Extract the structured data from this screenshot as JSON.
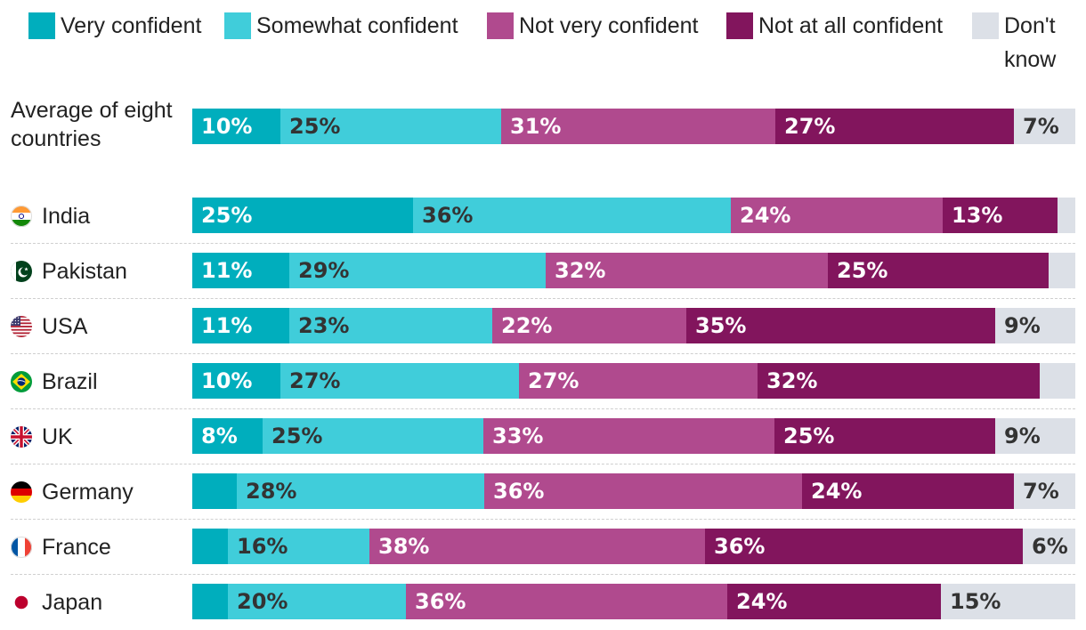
{
  "chart_data": {
    "type": "bar",
    "orientation": "horizontal-stacked-100",
    "legend": [
      {
        "name": "Very confident",
        "color": "#00AEBD"
      },
      {
        "name": "Somewhat confident",
        "color": "#40CDDA"
      },
      {
        "name": "Not very confident",
        "color": "#B04A8E"
      },
      {
        "name": "Not at all confident",
        "color": "#82155D"
      },
      {
        "name": "Don't know",
        "color": "#DCE0E7"
      }
    ],
    "average": {
      "label": "Average of eight countries",
      "values": [
        10,
        25,
        31,
        27,
        7
      ],
      "labels": [
        "10%",
        "25%",
        "31%",
        "27%",
        "7%"
      ]
    },
    "countries": [
      {
        "name": "India",
        "flag": "india-flag-icon",
        "values": [
          25,
          36,
          24,
          13,
          2
        ],
        "labels": [
          "25%",
          "36%",
          "24%",
          "13%",
          ""
        ]
      },
      {
        "name": "Pakistan",
        "flag": "pakistan-flag-icon",
        "values": [
          11,
          29,
          32,
          25,
          3
        ],
        "labels": [
          "11%",
          "29%",
          "32%",
          "25%",
          ""
        ]
      },
      {
        "name": "USA",
        "flag": "usa-flag-icon",
        "values": [
          11,
          23,
          22,
          35,
          9
        ],
        "labels": [
          "11%",
          "23%",
          "22%",
          "35%",
          "9%"
        ]
      },
      {
        "name": "Brazil",
        "flag": "brazil-flag-icon",
        "values": [
          10,
          27,
          27,
          32,
          4
        ],
        "labels": [
          "10%",
          "27%",
          "27%",
          "32%",
          ""
        ]
      },
      {
        "name": "UK",
        "flag": "uk-flag-icon",
        "values": [
          8,
          25,
          33,
          25,
          9
        ],
        "labels": [
          "8%",
          "25%",
          "33%",
          "25%",
          "9%"
        ]
      },
      {
        "name": "Germany",
        "flag": "germany-flag-icon",
        "values": [
          5,
          28,
          36,
          24,
          7
        ],
        "labels": [
          "",
          "28%",
          "36%",
          "24%",
          "7%"
        ]
      },
      {
        "name": "France",
        "flag": "france-flag-icon",
        "values": [
          4,
          16,
          38,
          36,
          6
        ],
        "labels": [
          "",
          "16%",
          "38%",
          "36%",
          "6%"
        ]
      },
      {
        "name": "Japan",
        "flag": "japan-flag-icon",
        "values": [
          4,
          20,
          36,
          24,
          15
        ],
        "labels": [
          "",
          "20%",
          "36%",
          "24%",
          "15%"
        ]
      }
    ]
  }
}
